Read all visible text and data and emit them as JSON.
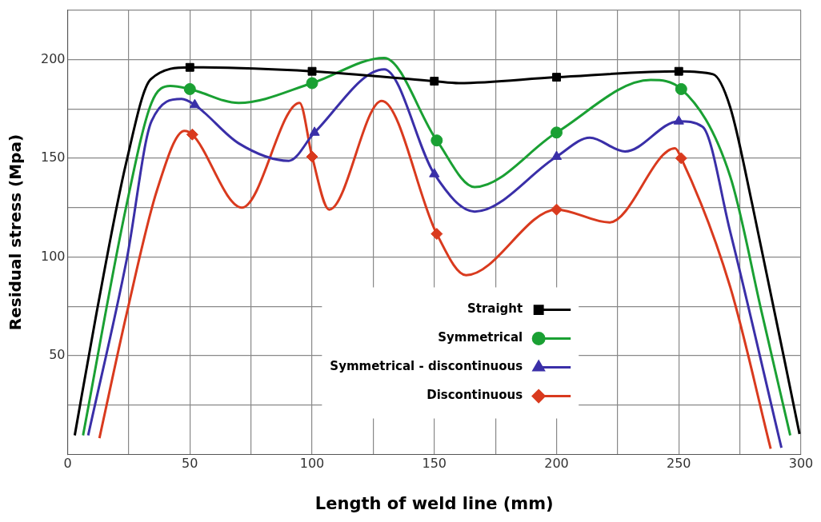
{
  "chart_data": {
    "type": "line",
    "xlabel": "Length of weld line (mm)",
    "ylabel": "Residual stress (Mpa)",
    "xlim": [
      0,
      300
    ],
    "xticks": [
      0,
      {
        "value": 25,
        "label": null
      },
      50,
      {
        "value": 75,
        "label": null
      },
      100,
      {
        "value": 125,
        "label": null
      },
      150,
      {
        "value": 175,
        "label": null
      },
      200,
      {
        "value": 225,
        "label": null
      },
      250,
      {
        "value": 275,
        "label": null
      },
      300
    ],
    "ylim": [
      0,
      225
    ],
    "yticks": [
      {
        "value": 25,
        "label": null
      },
      50,
      {
        "value": 75,
        "label": null
      },
      100,
      {
        "value": 125,
        "label": null
      },
      150,
      {
        "value": 175,
        "label": null
      },
      200,
      {
        "value": 225,
        "label": null
      }
    ],
    "grid": true,
    "legend": "bottom",
    "line_style": "solid",
    "series": [
      {
        "name": "Straight",
        "type": "line",
        "marker": "none",
        "color": "#000000",
        "x": [
          2.9,
          11.8,
          24,
          34,
          50,
          100,
          150,
          160,
          200,
          250,
          264,
          271,
          280,
          299.4
        ],
        "values": [
          9.7,
          71.6,
          148,
          190,
          196,
          194,
          189,
          188,
          191,
          194,
          192.5,
          176,
          127,
          10.4
        ]
      },
      {
        "type": "scatter",
        "marker": "square",
        "color": "#000000",
        "x": [
          50,
          100,
          150,
          200,
          250
        ],
        "values": [
          196,
          194,
          189,
          191,
          194
        ]
      },
      {
        "name": "Symmetrical",
        "type": "line",
        "marker": "none",
        "color": "#1aa033",
        "x": [
          6.3,
          24.2,
          34.3,
          42,
          50,
          70,
          100,
          129.5,
          151,
          166.5,
          200,
          238.5,
          251,
          271,
          284,
          295.6
        ],
        "values": [
          9.7,
          127,
          178,
          186.6,
          185,
          178,
          188,
          200.8,
          159,
          135.4,
          163,
          189.6,
          185,
          141,
          71.6,
          9.7
        ]
      },
      {
        "type": "scatter",
        "marker": "circle",
        "color": "#1aa033",
        "x": [
          50,
          100,
          151,
          200,
          251
        ],
        "values": [
          185,
          188,
          159,
          163,
          185
        ]
      },
      {
        "name": "Symmetrical - discontinuous",
        "type": "line",
        "marker": "none",
        "color": "#3a2fa8",
        "x": [
          8.4,
          24.2,
          34.3,
          46.6,
          52,
          70,
          90.5,
          101,
          129.5,
          150,
          166.5,
          200,
          213.6,
          228,
          250,
          259.7,
          271,
          292
        ],
        "values": [
          9.7,
          99,
          168.7,
          180,
          177,
          157.5,
          148.7,
          163,
          195,
          142,
          123,
          150.8,
          160.4,
          153.4,
          168.7,
          166,
          113,
          3.4
        ]
      },
      {
        "type": "scatter",
        "marker": "triangle",
        "color": "#3a2fa8",
        "x": [
          52,
          101,
          150,
          200,
          250
        ],
        "values": [
          177,
          163,
          142,
          150.8,
          168.7
        ]
      },
      {
        "name": "Discontinuous",
        "type": "line",
        "marker": "none",
        "color": "#d93a1e",
        "x": [
          13,
          24.2,
          36.6,
          47.8,
          51,
          71.3,
          94.9,
          100,
          107,
          128.5,
          151,
          163,
          200,
          221.6,
          248.5,
          251,
          271,
          287.6
        ],
        "values": [
          8.3,
          71.6,
          134,
          163.8,
          162,
          125,
          178,
          150.8,
          124,
          179,
          111.7,
          90.8,
          124,
          117.5,
          155,
          150,
          85,
          2.9
        ]
      },
      {
        "type": "scatter",
        "marker": "diamond",
        "color": "#d93a1e",
        "x": [
          51,
          100,
          151,
          200,
          251
        ],
        "values": [
          162,
          150.8,
          111.7,
          124,
          150
        ]
      }
    ]
  }
}
